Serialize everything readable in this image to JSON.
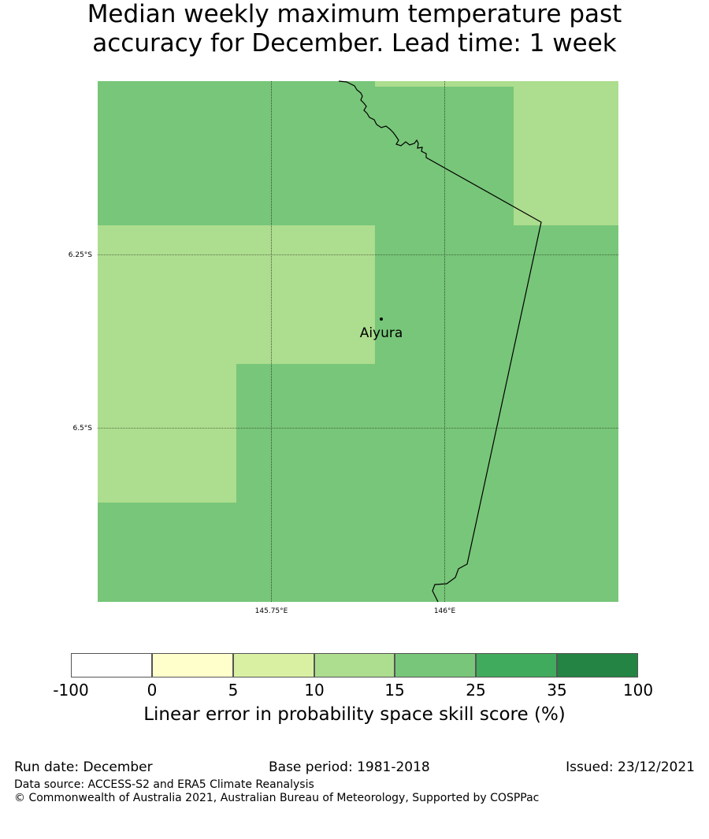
{
  "title": {
    "line1": "Median weekly maximum temperature past",
    "line2": "accuracy for December. Lead time: 1 week"
  },
  "map": {
    "lat_labels": [
      "6.25°S",
      "6.5°S"
    ],
    "lon_labels": [
      "145.75°E",
      "146°E"
    ],
    "location": {
      "name": "Aiyura"
    },
    "cell_colors": {
      "10-15": "#addd8e",
      "15-25": "#78c679"
    }
  },
  "colorbar": {
    "ticks": [
      "-100",
      "0",
      "5",
      "10",
      "15",
      "25",
      "35",
      "100"
    ],
    "colors": [
      "#ffffff",
      "#ffffcc",
      "#d9f0a3",
      "#addd8e",
      "#78c679",
      "#41ab5d",
      "#238443"
    ],
    "label": "Linear error in probability space skill score (%)"
  },
  "footer": {
    "run_date": "Run date: December",
    "base_period": "Base period: 1981-2018",
    "issued": "Issued: 23/12/2021",
    "data_source": "Data source: ACCESS-S2 and ERA5 Climate Reanalysis",
    "copyright": "© Commonwealth of Australia 2021, Australian Bureau of Meteorology, Supported by COSPPac"
  }
}
